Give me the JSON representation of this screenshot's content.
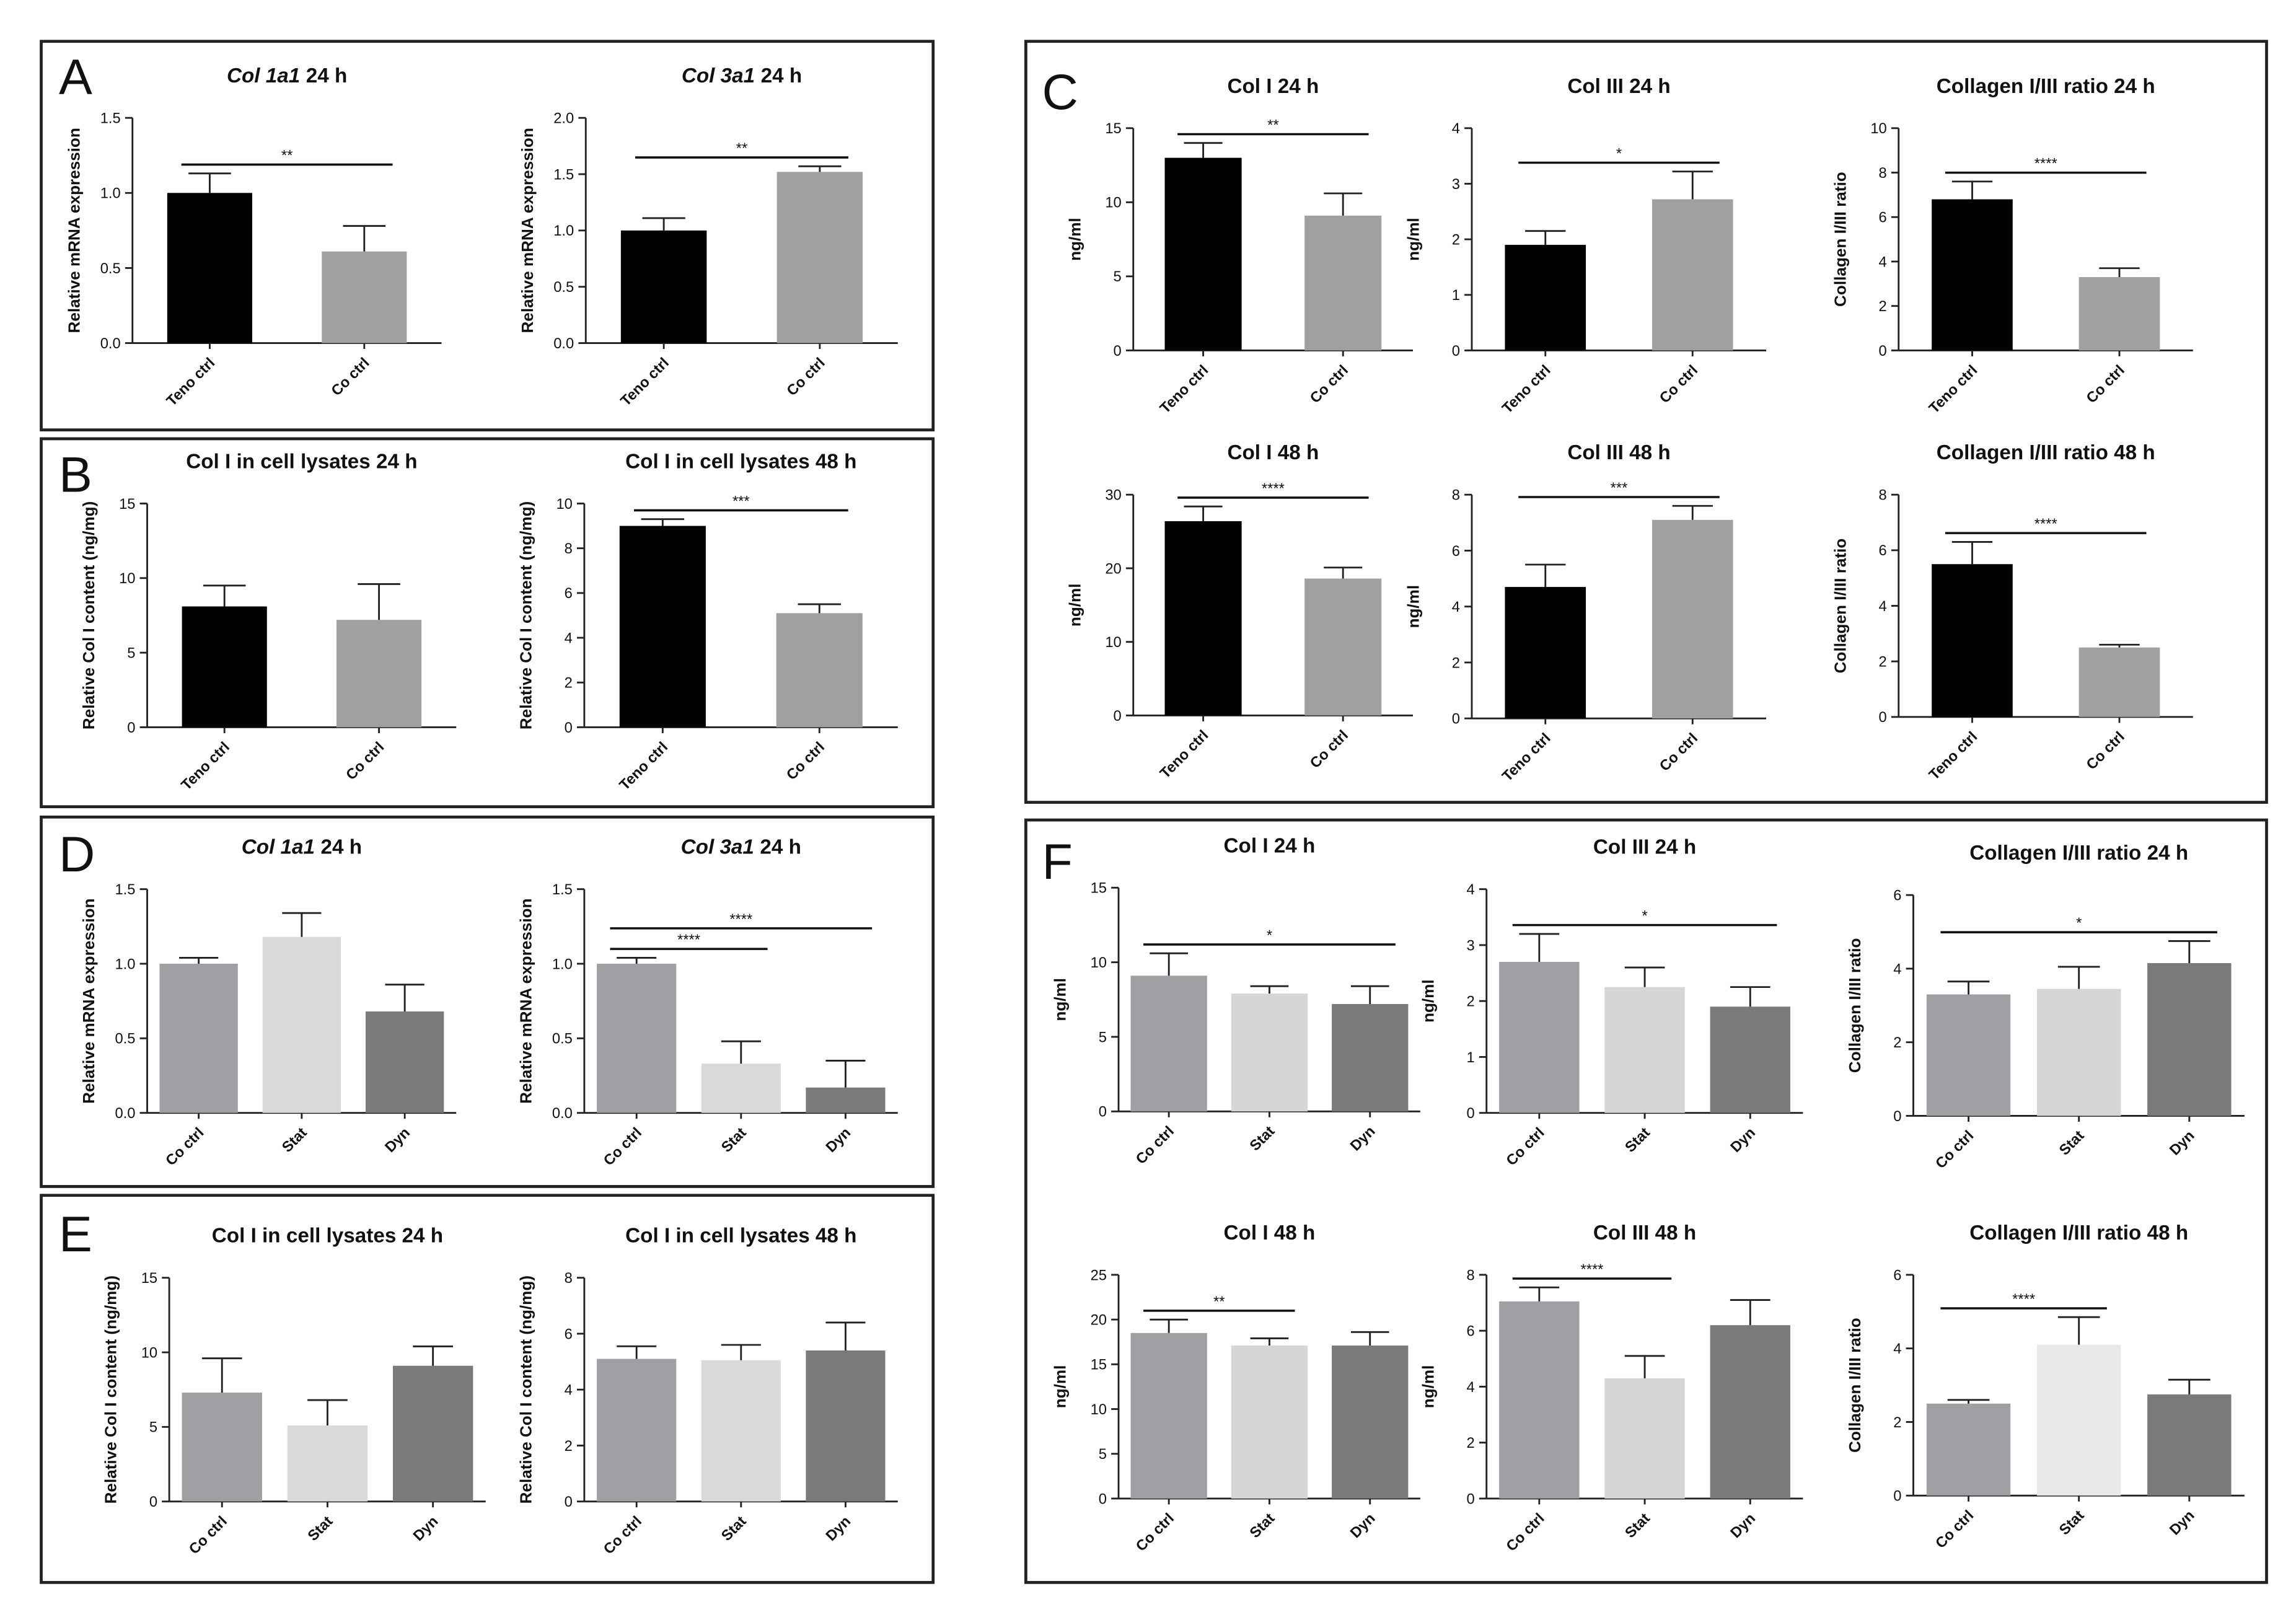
{
  "chart_data": [
    {
      "type": "bar",
      "panel": "A",
      "title_gene": "Col 1a1",
      "title": "24 h",
      "ylabel": "Relative mRNA expression",
      "categories": [
        "Teno ctrl",
        "Co ctrl"
      ],
      "values": [
        1.0,
        0.61
      ],
      "errors": [
        0.13,
        0.17
      ],
      "colors": [
        "#000000",
        "#a0a0a0"
      ],
      "ylim": [
        0,
        1.5
      ],
      "yticks": [
        {
          "value": 0,
          "label": "0.0"
        },
        0.5,
        {
          "value": 1,
          "label": "1.0"
        },
        1.5
      ],
      "significance": [
        {
          "label": "**",
          "from": 0,
          "to": 1
        }
      ]
    },
    {
      "type": "bar",
      "title_gene": "Col 3a1",
      "title": "24 h",
      "ylabel": "Relative mRNA expression",
      "categories": [
        "Teno ctrl",
        "Co ctrl"
      ],
      "values": [
        1.0,
        1.52
      ],
      "errors": [
        0.11,
        0.05
      ],
      "colors": [
        "#000000",
        "#a0a0a0"
      ],
      "ylim": [
        0,
        2
      ],
      "yticks": [
        {
          "value": 0,
          "label": "0.0"
        },
        0.5,
        {
          "value": 1,
          "label": "1.0"
        },
        1.5,
        {
          "value": 2,
          "label": "2.0"
        }
      ],
      "significance": [
        {
          "label": "**",
          "from": 0,
          "to": 1
        }
      ]
    },
    {
      "type": "bar",
      "panel": "B",
      "title": "Col I in cell lysates 24 h",
      "ylabel": "Relative Col I content (ng/mg)",
      "categories": [
        "Teno ctrl",
        "Co ctrl"
      ],
      "values": [
        8.1,
        7.2
      ],
      "errors": [
        1.4,
        2.4
      ],
      "colors": [
        "#000000",
        "#a0a0a0"
      ],
      "ylim": [
        0,
        15
      ],
      "yticks": [
        0,
        5,
        10,
        15
      ],
      "significance": []
    },
    {
      "type": "bar",
      "title": "Col I in cell lysates 48 h",
      "ylabel": "Relative Col I content (ng/mg)",
      "categories": [
        "Teno ctrl",
        "Co ctrl"
      ],
      "values": [
        9.0,
        5.1
      ],
      "errors": [
        0.3,
        0.4
      ],
      "colors": [
        "#000000",
        "#a0a0a0"
      ],
      "ylim": [
        0,
        10
      ],
      "yticks": [
        0,
        2,
        4,
        6,
        8,
        10
      ],
      "significance": [
        {
          "label": "***",
          "from": 0,
          "to": 1
        }
      ]
    },
    {
      "type": "bar",
      "panel": "C",
      "title": "Col I 24 h",
      "ylabel": "ng/ml",
      "categories": [
        "Teno ctrl",
        "Co ctrl"
      ],
      "values": [
        13.0,
        9.1
      ],
      "errors": [
        1.0,
        1.5
      ],
      "colors": [
        "#000000",
        "#a0a0a0"
      ],
      "ylim": [
        0,
        15
      ],
      "yticks": [
        0,
        5,
        10,
        15
      ],
      "significance": [
        {
          "label": "**",
          "from": 0,
          "to": 1
        }
      ]
    },
    {
      "type": "bar",
      "title": "Col III 24 h",
      "ylabel": "ng/ml",
      "categories": [
        "Teno ctrl",
        "Co ctrl"
      ],
      "values": [
        1.9,
        2.72
      ],
      "errors": [
        0.25,
        0.5
      ],
      "colors": [
        "#000000",
        "#a0a0a0"
      ],
      "ylim": [
        0,
        4
      ],
      "yticks": [
        0,
        1,
        2,
        3,
        4
      ],
      "significance": [
        {
          "label": "*",
          "from": 0,
          "to": 1
        }
      ]
    },
    {
      "type": "bar",
      "title": "Collagen I/III ratio 24 h",
      "ylabel": "Collagen I/III ratio",
      "categories": [
        "Teno ctrl",
        "Co ctrl"
      ],
      "values": [
        6.8,
        3.3
      ],
      "errors": [
        0.8,
        0.4
      ],
      "colors": [
        "#000000",
        "#a0a0a0"
      ],
      "ylim": [
        0,
        10
      ],
      "yticks": [
        0,
        2,
        4,
        6,
        8,
        10
      ],
      "significance": [
        {
          "label": "****",
          "from": 0,
          "to": 1
        }
      ]
    },
    {
      "type": "bar",
      "title": "Col I 48 h",
      "ylabel": "ng/ml",
      "categories": [
        "Teno ctrl",
        "Co ctrl"
      ],
      "values": [
        26.4,
        18.6
      ],
      "errors": [
        2.0,
        1.5
      ],
      "colors": [
        "#000000",
        "#a0a0a0"
      ],
      "ylim": [
        0,
        30
      ],
      "yticks": [
        0,
        10,
        20,
        30
      ],
      "significance": [
        {
          "label": "****",
          "from": 0,
          "to": 1
        }
      ]
    },
    {
      "type": "bar",
      "title": "Col III 48 h",
      "ylabel": "ng/ml",
      "categories": [
        "Teno ctrl",
        "Co ctrl"
      ],
      "values": [
        4.7,
        7.1
      ],
      "errors": [
        0.8,
        0.5
      ],
      "colors": [
        "#000000",
        "#a0a0a0"
      ],
      "ylim": [
        0,
        8
      ],
      "yticks": [
        0,
        2,
        4,
        6,
        8
      ],
      "significance": [
        {
          "label": "***",
          "from": 0,
          "to": 1
        }
      ]
    },
    {
      "type": "bar",
      "title": "Collagen I/III ratio 48 h",
      "ylabel": "Collagen I/III ratio",
      "categories": [
        "Teno ctrl",
        "Co ctrl"
      ],
      "values": [
        5.5,
        2.5
      ],
      "errors": [
        0.8,
        0.1
      ],
      "colors": [
        "#000000",
        "#a0a0a0"
      ],
      "ylim": [
        0,
        8
      ],
      "yticks": [
        0,
        2,
        4,
        6,
        8
      ],
      "significance": [
        {
          "label": "****",
          "from": 0,
          "to": 1
        }
      ]
    },
    {
      "type": "bar",
      "panel": "D",
      "title_gene": "Col 1a1",
      "title": "24 h",
      "ylabel": "Relative mRNA expression",
      "categories": [
        "Co ctrl",
        "Stat",
        "Dyn"
      ],
      "values": [
        1.0,
        1.18,
        0.68
      ],
      "errors": [
        0.04,
        0.16,
        0.18
      ],
      "colors": [
        "#a0a0a4",
        "#d9d9d9",
        "#7a7a7a"
      ],
      "ylim": [
        0,
        1.5
      ],
      "yticks": [
        {
          "value": 0,
          "label": "0.0"
        },
        0.5,
        {
          "value": 1,
          "label": "1.0"
        },
        1.5
      ],
      "significance": []
    },
    {
      "type": "bar",
      "title_gene": "Col 3a1",
      "title": "24 h",
      "ylabel": "Relative mRNA expression",
      "categories": [
        "Co ctrl",
        "Stat",
        "Dyn"
      ],
      "values": [
        1.0,
        0.33,
        0.17
      ],
      "errors": [
        0.04,
        0.15,
        0.18
      ],
      "colors": [
        "#a0a0a4",
        "#d9d9d9",
        "#7a7a7a"
      ],
      "ylim": [
        0,
        1.5
      ],
      "yticks": [
        {
          "value": 0,
          "label": "0.0"
        },
        0.5,
        {
          "value": 1,
          "label": "1.0"
        },
        1.5
      ],
      "significance": [
        {
          "label": "****",
          "from": 0,
          "to": 1
        },
        {
          "label": "****",
          "from": 0,
          "to": 2
        }
      ]
    },
    {
      "type": "bar",
      "panel": "E",
      "title": "Col I in cell lysates 24 h",
      "ylabel": "Relative Col I content (ng/mg)",
      "categories": [
        "Co ctrl",
        "Stat",
        "Dyn"
      ],
      "values": [
        7.3,
        5.1,
        9.1
      ],
      "errors": [
        2.3,
        1.7,
        1.3
      ],
      "colors": [
        "#a0a0a4",
        "#d9d9d9",
        "#7a7a7a"
      ],
      "ylim": [
        0,
        15
      ],
      "yticks": [
        0,
        5,
        10,
        15
      ],
      "significance": []
    },
    {
      "type": "bar",
      "title": "Col I in cell lysates 48 h",
      "ylabel": "Relative Col I content (ng/mg)",
      "categories": [
        "Co ctrl",
        "Stat",
        "Dyn"
      ],
      "values": [
        5.1,
        5.05,
        5.4
      ],
      "errors": [
        0.45,
        0.55,
        1.0
      ],
      "colors": [
        "#a0a0a4",
        "#d9d9d9",
        "#7a7a7a"
      ],
      "ylim": [
        0,
        8
      ],
      "yticks": [
        0,
        2,
        4,
        6,
        8
      ],
      "significance": []
    },
    {
      "type": "bar",
      "panel": "F",
      "title": "Col I 24 h",
      "ylabel": "ng/ml",
      "categories": [
        "Co ctrl",
        "Stat",
        "Dyn"
      ],
      "values": [
        9.1,
        7.9,
        7.2
      ],
      "errors": [
        1.5,
        0.5,
        1.2
      ],
      "colors": [
        "#a0a0a4",
        "#d6d6d6",
        "#7a7a7a"
      ],
      "ylim": [
        0,
        15
      ],
      "yticks": [
        0,
        5,
        10,
        15
      ],
      "significance": [
        {
          "label": "*",
          "from": 0,
          "to": 2
        }
      ]
    },
    {
      "type": "bar",
      "title": "Col III 24 h",
      "ylabel": "ng/ml",
      "categories": [
        "Co ctrl",
        "Stat",
        "Dyn"
      ],
      "values": [
        2.7,
        2.25,
        1.9
      ],
      "errors": [
        0.5,
        0.35,
        0.35
      ],
      "colors": [
        "#a0a0a4",
        "#d6d6d6",
        "#7a7a7a"
      ],
      "ylim": [
        0,
        4
      ],
      "yticks": [
        0,
        1,
        2,
        3,
        4
      ],
      "significance": [
        {
          "label": "*",
          "from": 0,
          "to": 2
        }
      ]
    },
    {
      "type": "bar",
      "title": "Collagen I/III ratio 24 h",
      "ylabel": "Collagen I/III ratio",
      "categories": [
        "Co ctrl",
        "Stat",
        "Dyn"
      ],
      "values": [
        3.3,
        3.45,
        4.15
      ],
      "errors": [
        0.35,
        0.6,
        0.6
      ],
      "colors": [
        "#a0a0a4",
        "#d6d6d6",
        "#7a7a7a"
      ],
      "ylim": [
        0,
        6
      ],
      "yticks": [
        0,
        2,
        4,
        6
      ],
      "significance": [
        {
          "label": "*",
          "from": 0,
          "to": 2
        }
      ]
    },
    {
      "type": "bar",
      "title": "Col I 48 h",
      "ylabel": "ng/ml",
      "categories": [
        "Co ctrl",
        "Stat",
        "Dyn"
      ],
      "values": [
        18.5,
        17.1,
        17.1
      ],
      "errors": [
        1.5,
        0.8,
        1.5
      ],
      "colors": [
        "#a0a0a4",
        "#d6d6d6",
        "#7a7a7a"
      ],
      "ylim": [
        0,
        25
      ],
      "yticks": [
        0,
        5,
        10,
        15,
        20,
        25
      ],
      "significance": [
        {
          "label": "**",
          "from": 0,
          "to": 1
        }
      ]
    },
    {
      "type": "bar",
      "title": "Col III 48 h",
      "ylabel": "ng/ml",
      "categories": [
        "Co ctrl",
        "Stat",
        "Dyn"
      ],
      "values": [
        7.05,
        4.3,
        6.2
      ],
      "errors": [
        0.5,
        0.8,
        0.9
      ],
      "colors": [
        "#a0a0a4",
        "#d6d6d6",
        "#7a7a7a"
      ],
      "ylim": [
        0,
        8
      ],
      "yticks": [
        0,
        2,
        4,
        6,
        8
      ],
      "significance": [
        {
          "label": "****",
          "from": 0,
          "to": 1
        }
      ]
    },
    {
      "type": "bar",
      "title": "Collagen I/III ratio 48 h",
      "ylabel": "Collagen I/III ratio",
      "categories": [
        "Co ctrl",
        "Stat",
        "Dyn"
      ],
      "values": [
        2.5,
        4.1,
        2.75
      ],
      "errors": [
        0.1,
        0.75,
        0.4
      ],
      "colors": [
        "#a0a0a4",
        "#e8e8e8",
        "#7a7a7a"
      ],
      "ylim": [
        0,
        6
      ],
      "yticks": [
        0,
        2,
        4,
        6
      ],
      "significance": [
        {
          "label": "****",
          "from": 0,
          "to": 1
        }
      ]
    }
  ]
}
